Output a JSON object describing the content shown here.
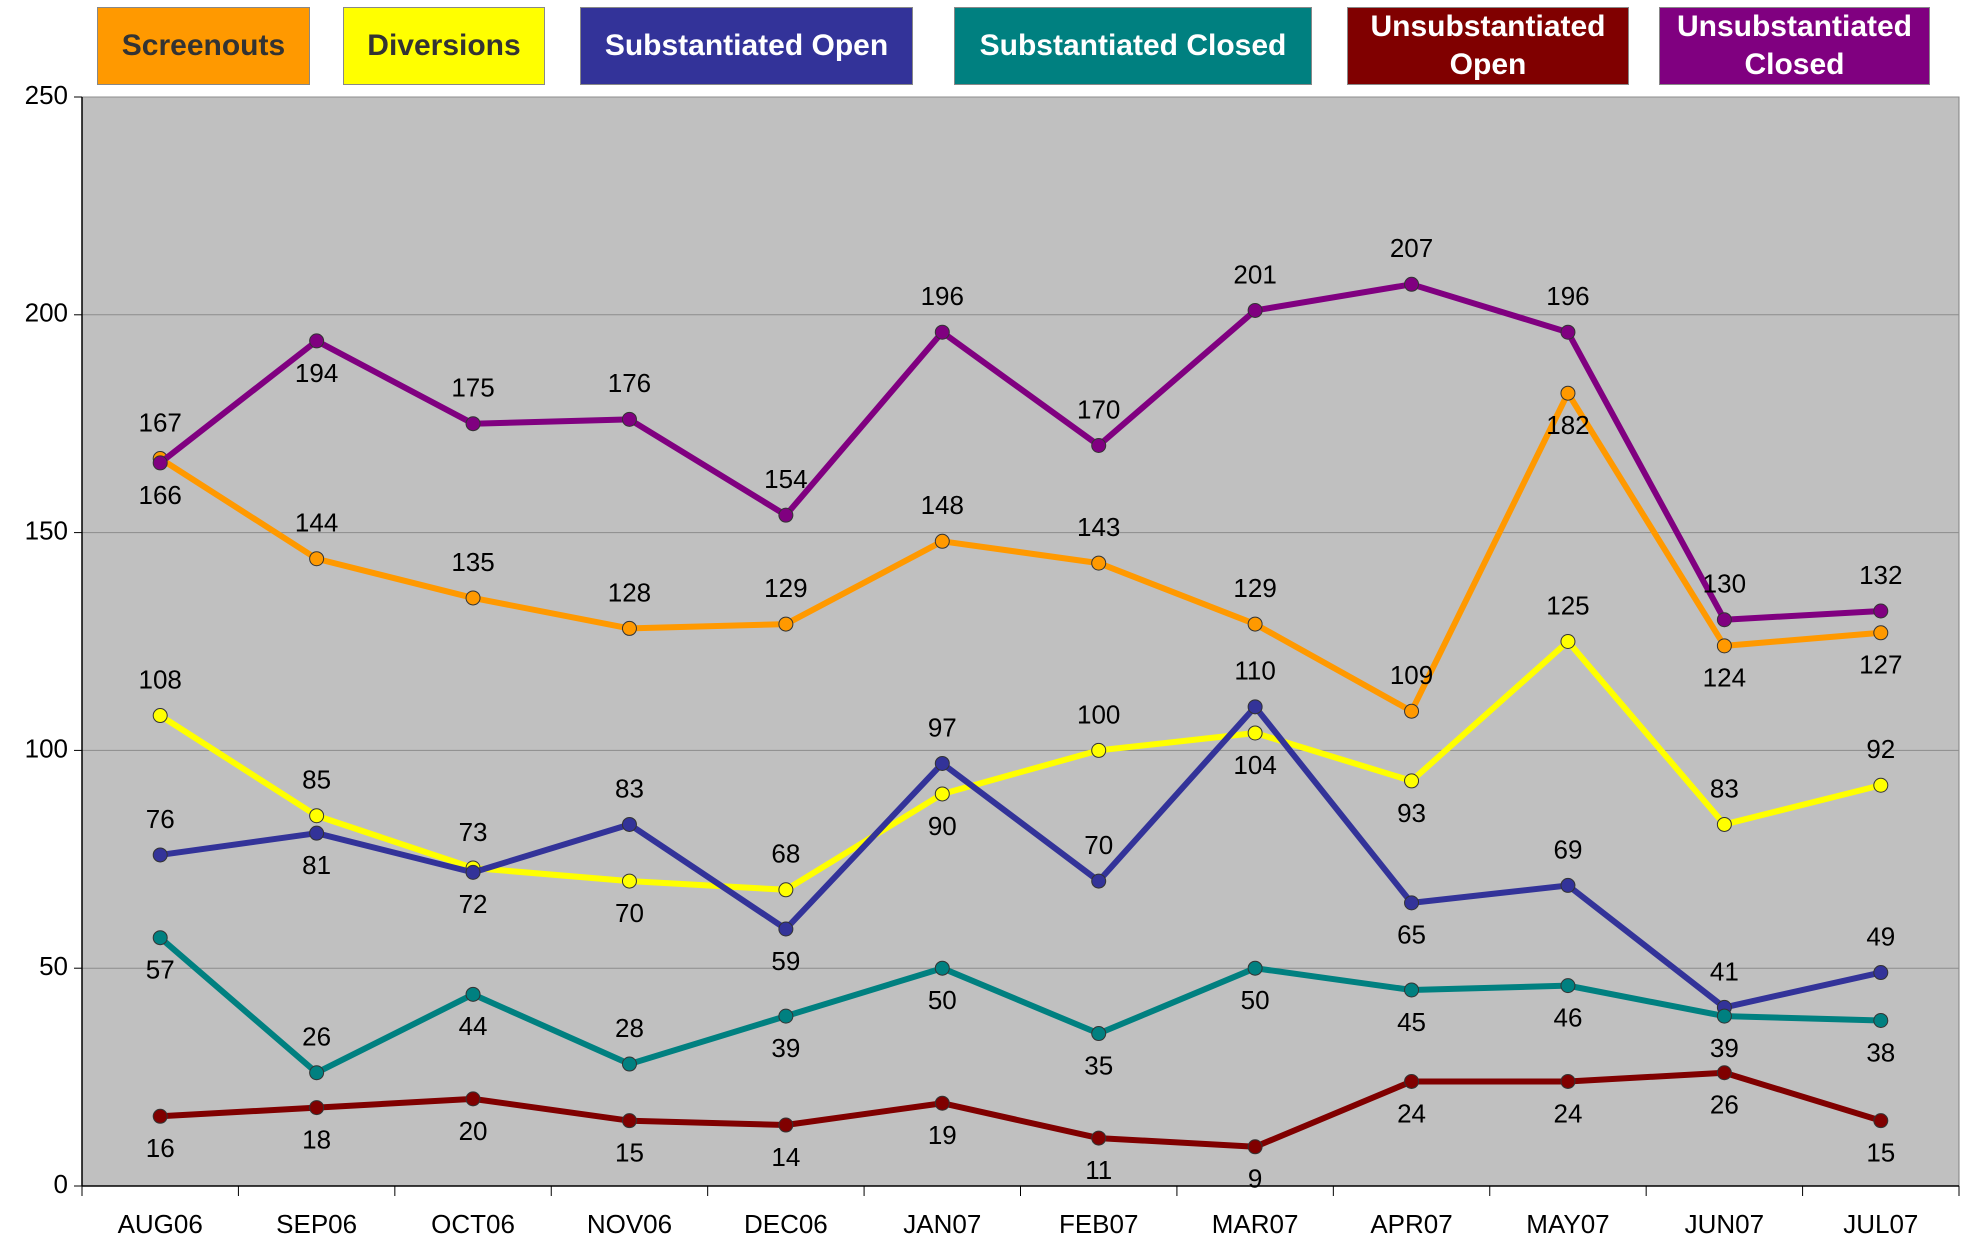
{
  "chart_data": {
    "type": "line",
    "categories": [
      "AUG06",
      "SEP06",
      "OCT06",
      "NOV06",
      "DEC06",
      "JAN07",
      "FEB07",
      "MAR07",
      "APR07",
      "MAY07",
      "JUN07",
      "JUL07"
    ],
    "series": [
      {
        "name": "Screenouts",
        "color": "#FF9900",
        "values": [
          167,
          144,
          135,
          128,
          129,
          148,
          143,
          129,
          109,
          182,
          124,
          127
        ]
      },
      {
        "name": "Diversions",
        "color": "#FFFF00",
        "values": [
          108,
          85,
          73,
          70,
          68,
          90,
          100,
          104,
          93,
          125,
          83,
          92
        ]
      },
      {
        "name": "Substantiated Open",
        "color": "#333399",
        "values": [
          76,
          81,
          72,
          83,
          59,
          97,
          70,
          110,
          65,
          69,
          41,
          49
        ]
      },
      {
        "name": "Substantiated Closed",
        "color": "#008080",
        "values": [
          57,
          26,
          44,
          28,
          39,
          50,
          35,
          50,
          45,
          46,
          39,
          38
        ]
      },
      {
        "name": "Unsubstantiated Open",
        "color": "#800000",
        "values": [
          16,
          18,
          20,
          15,
          14,
          19,
          11,
          9,
          24,
          24,
          26,
          15
        ]
      },
      {
        "name": "Unsubstantiated Closed",
        "color": "#800080",
        "values": [
          166,
          194,
          175,
          176,
          154,
          196,
          170,
          201,
          207,
          196,
          130,
          132
        ]
      }
    ],
    "ylim": [
      0,
      250
    ],
    "yticks": [
      0,
      50,
      100,
      150,
      200,
      250
    ],
    "grid": true
  }
}
